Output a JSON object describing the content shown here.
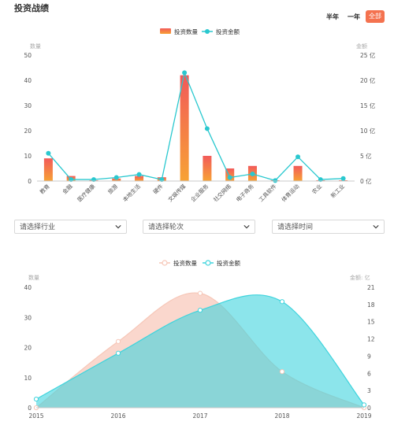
{
  "page": {
    "title": "投资战绩"
  },
  "ranges": {
    "half_year": "半年",
    "one_year": "一年",
    "all": "全部"
  },
  "filters": [
    {
      "label": "请选择行业"
    },
    {
      "label": "请选择轮次"
    },
    {
      "label": "请选择时间"
    }
  ],
  "colors": {
    "bar_top": "#f25a5a",
    "bar_bottom": "#f7a234",
    "line": "#2ac8cf",
    "area1": "#f6b7a4",
    "area2": "#3fd4dd"
  },
  "chart_data": [
    {
      "type": "bar",
      "categories": [
        "教育",
        "金融",
        "医疗健康",
        "旅游",
        "本地生活",
        "硬件",
        "文娱传媒",
        "企业服务",
        "社交网络",
        "电子商务",
        "工具软件",
        "体育运动",
        "农业",
        "新工业"
      ],
      "series": [
        {
          "name": "投资数量",
          "type": "bar",
          "axis": "left",
          "values": [
            9,
            2,
            0.3,
            1,
            2,
            1.5,
            42,
            10,
            5,
            6,
            0.3,
            6,
            0.3,
            0.3
          ]
        },
        {
          "name": "投资金额",
          "type": "line",
          "axis": "right",
          "values": [
            5.5,
            0.3,
            0.3,
            0.7,
            1.3,
            0.3,
            21.5,
            10.4,
            0.7,
            1.4,
            0.1,
            4.8,
            0.3,
            0.5
          ]
        }
      ],
      "ylabel_left": "数量",
      "ylabel_right": "金额",
      "ylim_left": [
        0,
        50
      ],
      "ylim_right": [
        0,
        25
      ],
      "yticks_left": [
        "0",
        "10",
        "20",
        "30",
        "40",
        "50"
      ],
      "yticks_right": [
        "0 亿",
        "5 亿",
        "10 亿",
        "15 亿",
        "20 亿",
        "25 亿"
      ],
      "legend": "top-center",
      "grid": false
    },
    {
      "type": "area",
      "categories": [
        "2015",
        "2016",
        "2017",
        "2018",
        "2019"
      ],
      "series": [
        {
          "name": "投资数量",
          "axis": "left",
          "values": [
            0,
            22,
            38,
            12,
            0
          ]
        },
        {
          "name": "投资金额",
          "axis": "right",
          "values": [
            1.5,
            9.5,
            17,
            18.5,
            0.5
          ]
        }
      ],
      "ylabel_left": "数量",
      "ylabel_right": "金额: 亿",
      "ylim_left": [
        0,
        40
      ],
      "ylim_right": [
        0,
        21
      ],
      "yticks_left": [
        "0",
        "10",
        "20",
        "30",
        "40"
      ],
      "yticks_right": [
        "0",
        "3",
        "6",
        "9",
        "12",
        "15",
        "18",
        "21"
      ],
      "legend": "top-center",
      "grid": false
    }
  ]
}
